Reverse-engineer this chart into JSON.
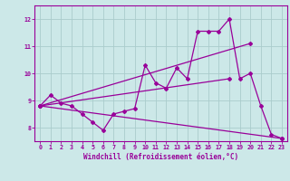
{
  "background_color": "#cce8e8",
  "grid_color": "#aacccc",
  "line_color": "#990099",
  "xlabel": "Windchill (Refroidissement éolien,°C)",
  "xlim": [
    -0.5,
    23.5
  ],
  "ylim": [
    7.5,
    12.5
  ],
  "yticks": [
    8,
    9,
    10,
    11,
    12
  ],
  "xticks": [
    0,
    1,
    2,
    3,
    4,
    5,
    6,
    7,
    8,
    9,
    10,
    11,
    12,
    13,
    14,
    15,
    16,
    17,
    18,
    19,
    20,
    21,
    22,
    23
  ],
  "series": [
    {
      "x": [
        0,
        1,
        2,
        3,
        4,
        5,
        6,
        7,
        8,
        9,
        10,
        11,
        12,
        13,
        14,
        15,
        16,
        17,
        18,
        19,
        20,
        21,
        22,
        23
      ],
      "y": [
        8.8,
        9.2,
        8.9,
        8.8,
        8.5,
        8.2,
        7.9,
        8.5,
        8.6,
        8.7,
        10.3,
        9.65,
        9.45,
        10.2,
        9.8,
        11.55,
        11.55,
        11.55,
        12.0,
        9.8,
        10.0,
        8.8,
        7.75,
        7.6
      ]
    },
    {
      "x": [
        0,
        20
      ],
      "y": [
        8.8,
        11.1
      ]
    },
    {
      "x": [
        0,
        23
      ],
      "y": [
        8.8,
        7.6
      ]
    },
    {
      "x": [
        0,
        18
      ],
      "y": [
        8.8,
        9.8
      ]
    }
  ]
}
